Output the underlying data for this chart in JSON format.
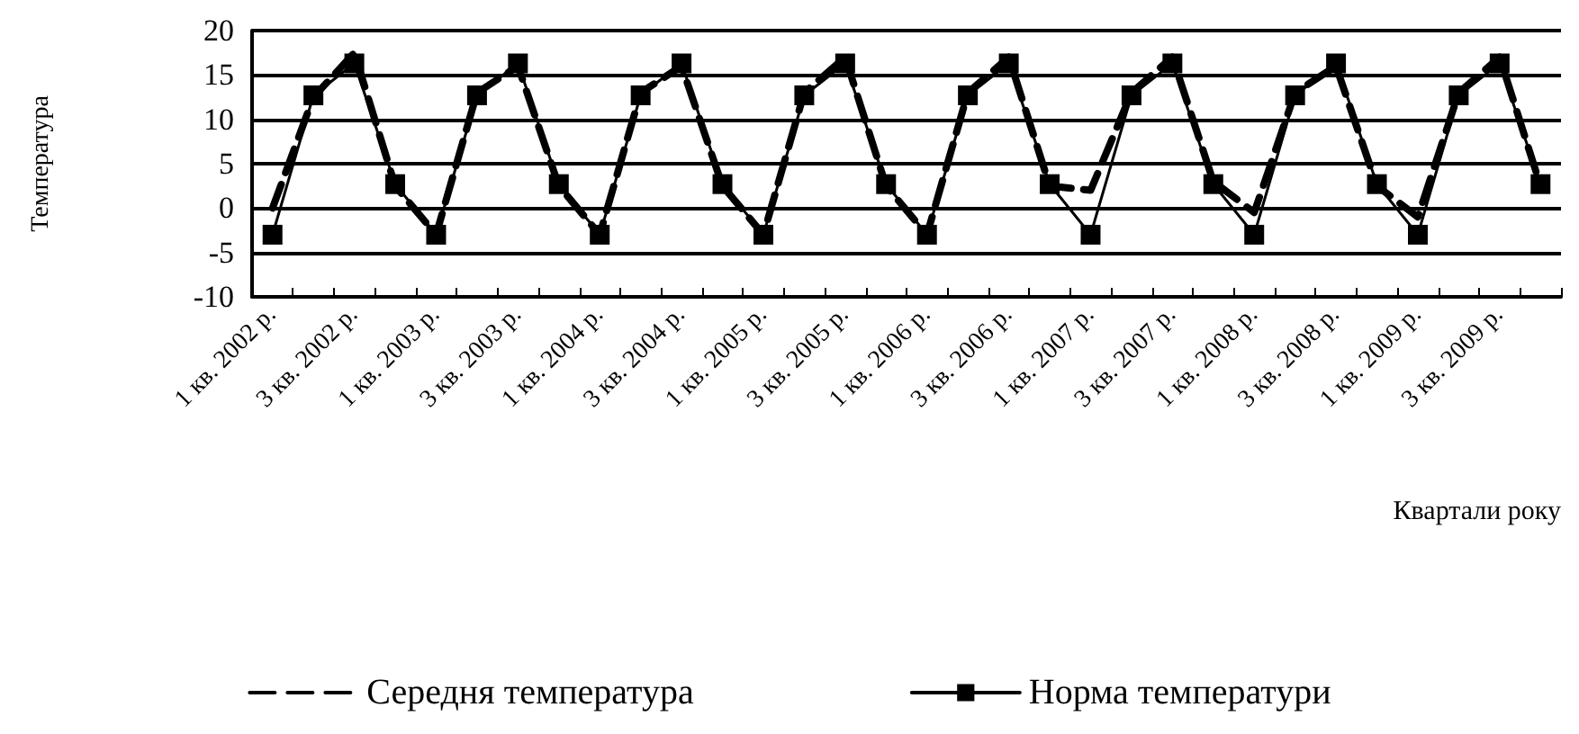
{
  "chart_data": {
    "type": "line",
    "xlabel": "Квартали року",
    "ylabel": "Температура",
    "categories": [
      "1 кв. 2002 р.",
      null,
      "3 кв. 2002 р.",
      null,
      "1 кв. 2003 р.",
      null,
      "3 кв. 2003 р.",
      null,
      "1 кв. 2004 р.",
      null,
      "3 кв. 2004 р.",
      null,
      "1 кв. 2005 р.",
      null,
      "3 кв. 2005 р.",
      null,
      "1 кв. 2006 р.",
      null,
      "3 кв. 2006 р.",
      null,
      "1 кв. 2007 р.",
      null,
      "3 кв. 2007 р.",
      null,
      "1 кв. 2008 р.",
      null,
      "3 кв. 2008 р.",
      null,
      "1 кв. 2009 р.",
      null,
      "3 кв. 2009 р.",
      null
    ],
    "series": [
      {
        "name": "Середня температура",
        "color": "#000000",
        "line_style": "dashed",
        "marker": "none",
        "values": [
          0,
          12.5,
          17.5,
          2.5,
          -3,
          13,
          16,
          2.5,
          -3,
          13,
          16,
          2.5,
          -3,
          13,
          17,
          2.5,
          -3,
          13,
          17,
          2.5,
          2,
          13,
          17,
          3,
          -0.5,
          13,
          16,
          2.5,
          -1,
          13,
          17,
          2.5
        ]
      },
      {
        "name": "Норма температури",
        "color": "#000000",
        "line_style": "solid",
        "marker": "square",
        "values": [
          -3,
          12.7,
          16.3,
          2.7,
          -3,
          12.7,
          16.3,
          2.7,
          -3,
          12.7,
          16.3,
          2.7,
          -3,
          12.7,
          16.3,
          2.7,
          -3,
          12.7,
          16.3,
          2.7,
          -3,
          12.7,
          16.3,
          2.7,
          -3,
          12.7,
          16.3,
          2.7,
          -3,
          12.7,
          16.3,
          2.7
        ]
      }
    ],
    "ylim": [
      -10,
      20
    ],
    "yticks": [
      -10,
      -5,
      0,
      5,
      10,
      15,
      20
    ],
    "grid": "y",
    "legend": "bottom"
  }
}
